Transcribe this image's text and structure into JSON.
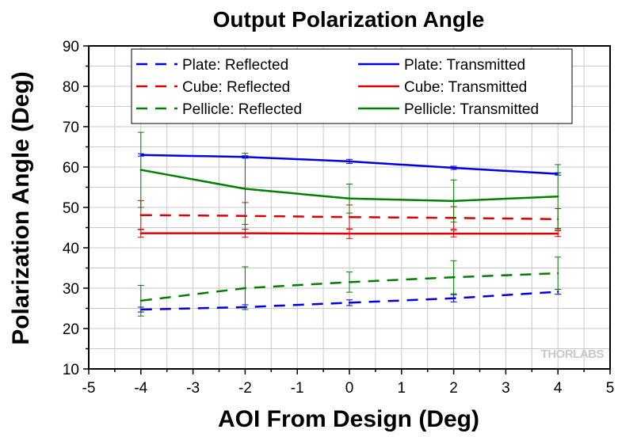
{
  "chart_data": {
    "type": "line",
    "title": "Output Polarization Angle",
    "xlabel": "AOI From Design (Deg)",
    "ylabel": "Polarization Angle (Deg)",
    "xlim": [
      -5,
      5
    ],
    "ylim": [
      10,
      90
    ],
    "xticks": [
      -5,
      -4,
      -3,
      -2,
      -1,
      0,
      1,
      2,
      3,
      4,
      5
    ],
    "yticks": [
      10,
      20,
      30,
      40,
      50,
      60,
      70,
      80,
      90
    ],
    "grid": true,
    "legend_position": "top",
    "watermark": "THORLABS",
    "series": [
      {
        "name": "Plate: Reflected",
        "color": "#0000dd",
        "style": "dashed",
        "x": [
          -4,
          -2,
          0,
          2,
          4
        ],
        "y": [
          24.7,
          25.3,
          26.4,
          27.5,
          29.1
        ],
        "err": [
          0.6,
          0.6,
          0.7,
          0.9,
          0.6
        ]
      },
      {
        "name": "Plate: Transmitted",
        "color": "#0000dd",
        "style": "solid",
        "x": [
          -4,
          -2,
          0,
          2,
          4
        ],
        "y": [
          63.0,
          62.5,
          61.4,
          59.8,
          58.3
        ],
        "err": [
          0.3,
          0.3,
          0.5,
          0.4,
          0.3
        ]
      },
      {
        "name": "Cube: Reflected",
        "color": "#dd0000",
        "style": "dashed",
        "x": [
          -4,
          -2,
          0,
          2,
          4
        ],
        "y": [
          48.1,
          47.9,
          47.6,
          47.4,
          47.1
        ],
        "err": [
          3.6,
          3.3,
          3.0,
          2.8,
          2.6
        ]
      },
      {
        "name": "Cube: Transmitted",
        "color": "#dd0000",
        "style": "solid",
        "x": [
          -4,
          -2,
          0,
          2,
          4
        ],
        "y": [
          43.6,
          43.6,
          43.5,
          43.5,
          43.5
        ],
        "err": [
          1.0,
          1.0,
          1.2,
          0.8,
          0.7
        ]
      },
      {
        "name": "Pellicle: Reflected",
        "color": "#008000",
        "style": "dashed",
        "x": [
          -4,
          -2,
          0,
          2,
          4
        ],
        "y": [
          26.9,
          30.0,
          31.5,
          32.7,
          33.7
        ],
        "err": [
          3.8,
          5.3,
          2.5,
          4.1,
          4.0
        ]
      },
      {
        "name": "Pellicle: Transmitted",
        "color": "#008000",
        "style": "solid",
        "x": [
          -4,
          -2,
          0,
          2,
          4
        ],
        "y": [
          59.3,
          54.6,
          52.2,
          51.6,
          52.7
        ],
        "err": [
          9.3,
          8.8,
          3.6,
          5.2,
          7.9
        ]
      }
    ]
  }
}
